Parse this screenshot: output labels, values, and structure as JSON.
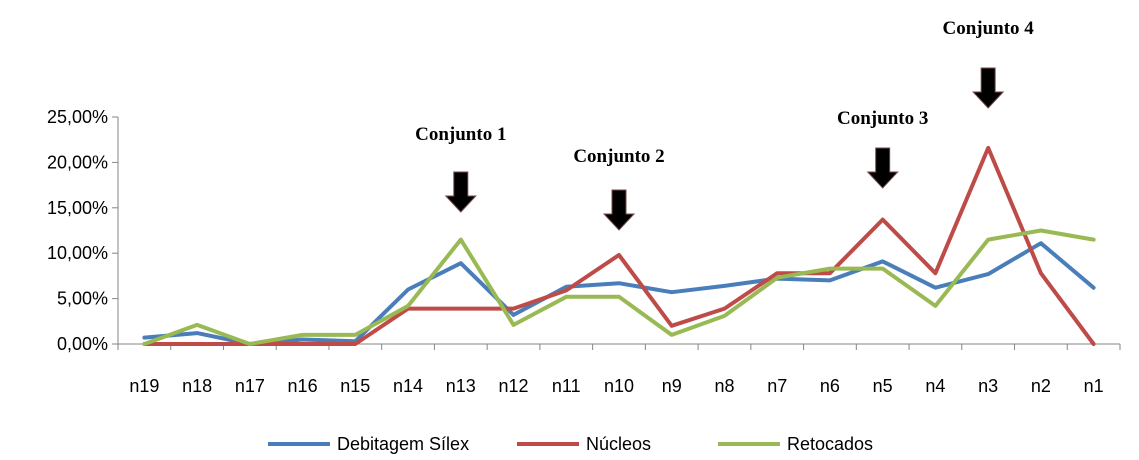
{
  "chart_data": {
    "type": "line",
    "categories": [
      "n19",
      "n18",
      "n17",
      "n16",
      "n15",
      "n14",
      "n13",
      "n12",
      "n11",
      "n10",
      "n9",
      "n8",
      "n7",
      "n6",
      "n5",
      "n4",
      "n3",
      "n2",
      "n1"
    ],
    "ylim": [
      0,
      25
    ],
    "yticks": [
      "0,00%",
      "5,00%",
      "10,00%",
      "15,00%",
      "20,00%",
      "25,00%"
    ],
    "yticks_values": [
      0,
      5,
      10,
      15,
      20,
      25
    ],
    "grid": false,
    "legend_position": "bottom",
    "series": [
      {
        "name": "Debitagem Sílex",
        "color": "#4a7ebb",
        "values": [
          0.7,
          1.2,
          0.0,
          0.5,
          0.3,
          6.0,
          8.9,
          3.2,
          6.3,
          6.7,
          5.7,
          6.4,
          7.2,
          7.0,
          9.1,
          6.2,
          7.7,
          11.1,
          6.2
        ]
      },
      {
        "name": "Núcleos",
        "color": "#be4b48",
        "values": [
          0.0,
          0.0,
          0.0,
          0.0,
          0.0,
          3.9,
          3.9,
          3.9,
          5.9,
          9.8,
          2.0,
          3.9,
          7.8,
          7.8,
          13.7,
          7.8,
          21.6,
          7.8,
          0.0
        ]
      },
      {
        "name": "Retocados",
        "color": "#98b954",
        "values": [
          0.0,
          2.1,
          0.0,
          1.0,
          1.0,
          4.2,
          11.5,
          2.1,
          5.2,
          5.2,
          1.0,
          3.1,
          7.3,
          8.3,
          8.3,
          4.2,
          11.5,
          12.5,
          11.5
        ]
      }
    ],
    "annotations": [
      {
        "text": "Conjunto 1",
        "category": "n13"
      },
      {
        "text": "Conjunto 2",
        "category": "n10"
      },
      {
        "text": "Conjunto 3",
        "category": "n5"
      },
      {
        "text": "Conjunto 4",
        "category": "n3"
      }
    ]
  }
}
